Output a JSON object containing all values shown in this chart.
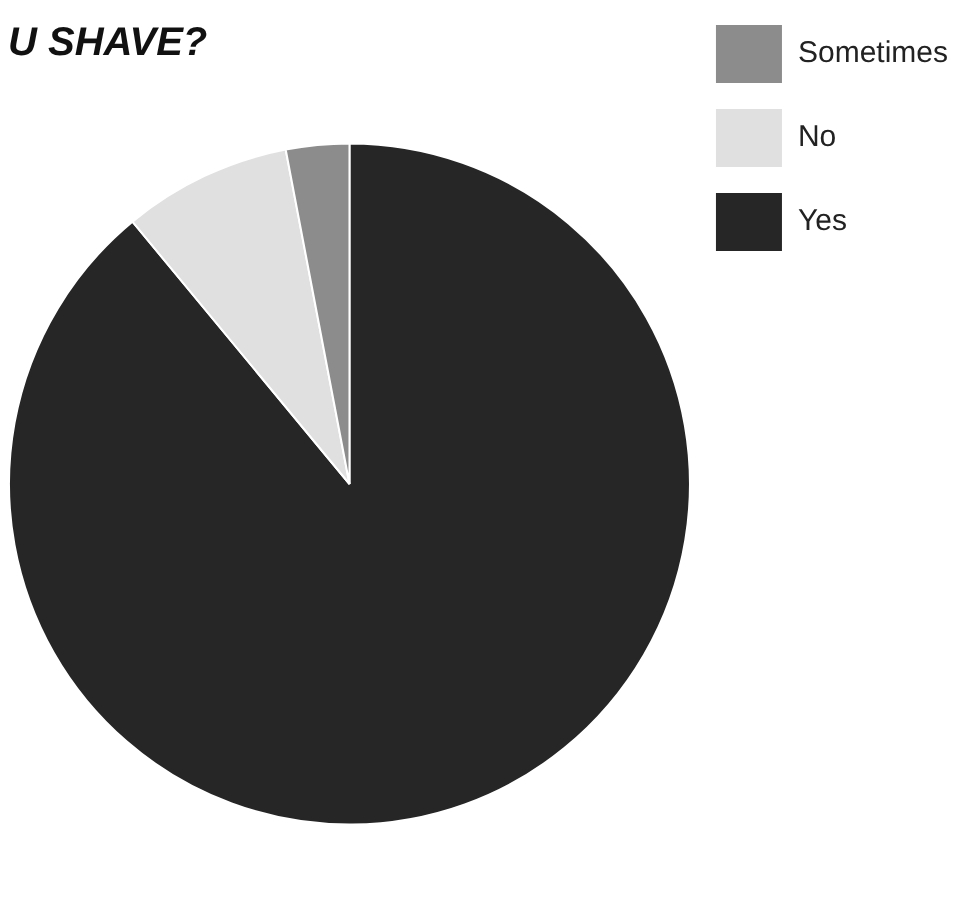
{
  "chart_data": {
    "type": "pie",
    "title": "U SHAVE?",
    "categories": [
      "Yes",
      "No",
      "Sometimes"
    ],
    "values": [
      89,
      8,
      3
    ],
    "colors": [
      "#262626",
      "#e0e0e0",
      "#8c8c8c"
    ],
    "legend": "top right"
  }
}
